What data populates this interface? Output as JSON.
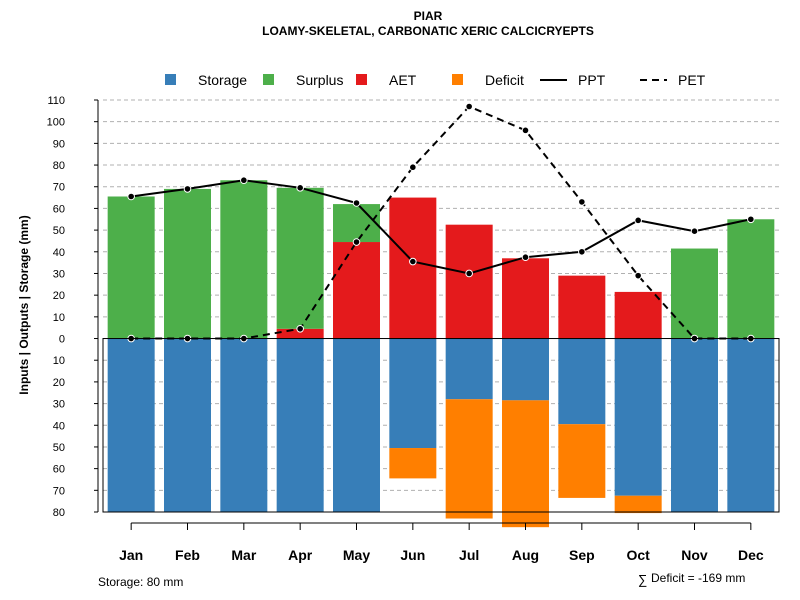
{
  "chart_data": {
    "type": "bar",
    "title": "PIAR",
    "subtitle": "LOAMY-SKELETAL, CARBONATIC XERIC CALCICRYEPTS",
    "ylabel": "Inputs | Outputs | Storage    (mm)",
    "categories": [
      "Jan",
      "Feb",
      "Mar",
      "Apr",
      "May",
      "Jun",
      "Jul",
      "Aug",
      "Sep",
      "Oct",
      "Nov",
      "Dec"
    ],
    "ylim": [
      -80,
      110
    ],
    "yticks": [
      110,
      100,
      90,
      80,
      70,
      60,
      50,
      40,
      30,
      20,
      10,
      0,
      -10,
      -20,
      -30,
      -40,
      -50,
      -60,
      -70,
      -80
    ],
    "ytick_labels": [
      "110",
      "100",
      "90",
      "80",
      "70",
      "60",
      "50",
      "40",
      "30",
      "20",
      "10",
      "0",
      "10",
      "20",
      "30",
      "40",
      "50",
      "60",
      "70",
      "80"
    ],
    "legend": [
      {
        "label": "Storage",
        "color": "#377EB8",
        "kind": "box"
      },
      {
        "label": "Surplus",
        "color": "#4DAF4A",
        "kind": "box"
      },
      {
        "label": "AET",
        "color": "#E41A1C",
        "kind": "box"
      },
      {
        "label": "Deficit",
        "color": "#FF7F00",
        "kind": "box"
      },
      {
        "label": "PPT",
        "color": "#000000",
        "kind": "solid"
      },
      {
        "label": "PET",
        "color": "#000000",
        "kind": "dashed"
      }
    ],
    "series": [
      {
        "name": "AET",
        "color": "#E41A1C",
        "values": [
          0,
          0,
          0,
          4.5,
          44.5,
          65,
          52.5,
          37,
          29,
          21.5,
          0,
          0
        ]
      },
      {
        "name": "Surplus",
        "color": "#4DAF4A",
        "values": [
          65.5,
          69,
          73,
          65,
          17.5,
          0,
          0,
          0,
          0,
          0,
          41.5,
          55
        ]
      },
      {
        "name": "Storage",
        "color": "#377EB8",
        "values": [
          80,
          80,
          80,
          80,
          80,
          50.5,
          28,
          28.5,
          39.5,
          72.5,
          80,
          80
        ]
      },
      {
        "name": "Deficit",
        "color": "#FF7F00",
        "values": [
          0,
          0,
          0,
          0,
          0,
          14,
          55,
          58.5,
          34,
          8,
          0,
          0
        ]
      },
      {
        "name": "PPT",
        "color": "#000000",
        "style": "solid",
        "values": [
          65.5,
          69,
          73,
          69.5,
          62.5,
          35.5,
          30,
          37.5,
          40,
          54.5,
          49.5,
          55
        ]
      },
      {
        "name": "PET",
        "color": "#000000",
        "style": "dashed",
        "values": [
          0,
          0,
          0,
          4.5,
          44.5,
          79,
          107,
          96,
          63,
          29,
          0,
          0
        ]
      }
    ]
  },
  "footer": {
    "storage_note": "Storage: 80 mm",
    "deficit_symbol": "∑",
    "deficit_note": "Deficit = -169 mm"
  }
}
